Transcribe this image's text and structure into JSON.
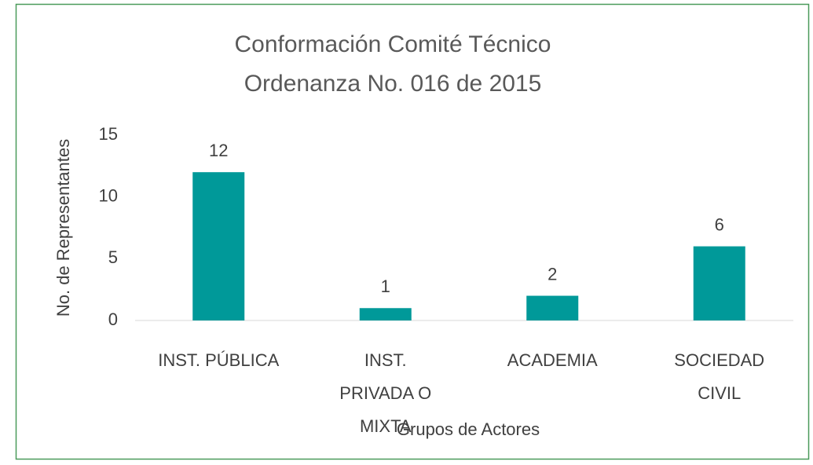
{
  "chart_data": {
    "type": "bar",
    "title": [
      "Conformación Comité Técnico",
      "Ordenanza No. 016 de 2015"
    ],
    "x_label": "Grupos de Actores",
    "y_label": "No. de Representantes",
    "categories": [
      "INST. PÚBLICA",
      "INST. PRIVADA O MIXTA",
      "ACADEMIA",
      "SOCIEDAD CIVIL"
    ],
    "values": [
      12,
      1,
      2,
      6
    ],
    "color": "#009999",
    "ylim": [
      0,
      15
    ],
    "yticks": [
      0,
      5,
      10,
      15
    ],
    "grid": false
  }
}
